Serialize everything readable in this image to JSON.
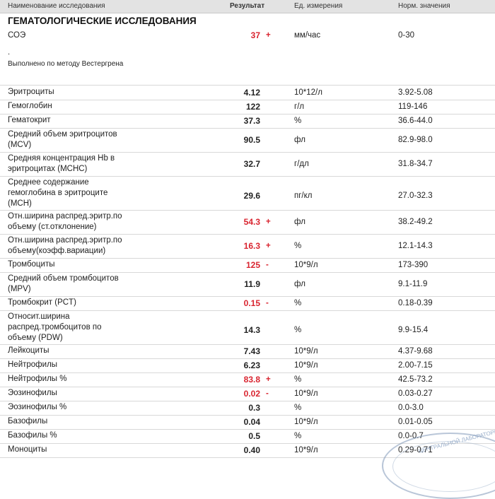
{
  "header": {
    "name": "Наименование исследования",
    "result": "Результат",
    "unit": "Ед. измерения",
    "norm": "Норм. значения"
  },
  "section_title": "ГЕМАТОЛОГИЧЕСКИЕ ИССЛЕДОВАНИЯ",
  "esr": {
    "name": "СОЭ",
    "value": "37",
    "flag": "+",
    "unit": "мм/час",
    "norm": "0-30",
    "dot": ".",
    "method": "Выполнено по методу Вестергрена"
  },
  "rows": [
    {
      "name": [
        "Эритроциты"
      ],
      "value": "4.12",
      "flag": "",
      "unit": "10*12/л",
      "norm": "3.92-5.08"
    },
    {
      "name": [
        "Гемоглобин"
      ],
      "value": "122",
      "flag": "",
      "unit": "г/л",
      "norm": "119-146"
    },
    {
      "name": [
        "Гематокрит"
      ],
      "value": "37.3",
      "flag": "",
      "unit": "%",
      "norm": "36.6-44.0"
    },
    {
      "name": [
        "Средний объем эритроцитов",
        "(MCV)"
      ],
      "value": "90.5",
      "flag": "",
      "unit": "фл",
      "norm": "82.9-98.0"
    },
    {
      "name": [
        "Средняя концентрация Hb в",
        "эритроцитах (MCHC)"
      ],
      "value": "32.7",
      "flag": "",
      "unit": "г/дл",
      "norm": "31.8-34.7"
    },
    {
      "name": [
        "Среднее содержание",
        "гемоглобина в эритроците",
        "(MCH)"
      ],
      "value": "29.6",
      "flag": "",
      "unit": "пг/кл",
      "norm": "27.0-32.3"
    },
    {
      "name": [
        "Отн.ширина распред.эритр.по",
        "объему (ст.отклонение)"
      ],
      "value": "54.3",
      "flag": "+",
      "unit": "фл",
      "norm": "38.2-49.2"
    },
    {
      "name": [
        "Отн.ширина распред.эритр.по",
        "объему(коэфф.вариации)"
      ],
      "value": "16.3",
      "flag": "+",
      "unit": "%",
      "norm": "12.1-14.3"
    },
    {
      "name": [
        "Тромбоциты"
      ],
      "value": "125",
      "flag": "-",
      "unit": "10*9/л",
      "norm": "173-390"
    },
    {
      "name": [
        "Средний объем тромбоцитов",
        "(MPV)"
      ],
      "value": "11.9",
      "flag": "",
      "unit": "фл",
      "norm": "9.1-11.9"
    },
    {
      "name": [
        "Тромбокрит (PCT)"
      ],
      "value": "0.15",
      "flag": "-",
      "unit": "%",
      "norm": "0.18-0.39"
    },
    {
      "name": [
        "Относит.ширина",
        "распред.тромбоцитов по",
        "объему (PDW)"
      ],
      "value": "14.3",
      "flag": "",
      "unit": "%",
      "norm": "9.9-15.4"
    },
    {
      "name": [
        "Лейкоциты"
      ],
      "value": "7.43",
      "flag": "",
      "unit": "10*9/л",
      "norm": "4.37-9.68"
    },
    {
      "name": [
        "Нейтрофилы"
      ],
      "value": "6.23",
      "flag": "",
      "unit": "10*9/л",
      "norm": "2.00-7.15"
    },
    {
      "name": [
        "Нейтрофилы %"
      ],
      "value": "83.8",
      "flag": "+",
      "unit": "%",
      "norm": "42.5-73.2"
    },
    {
      "name": [
        "Эозинофилы"
      ],
      "value": "0.02",
      "flag": "-",
      "unit": "10*9/л",
      "norm": "0.03-0.27"
    },
    {
      "name": [
        "Эозинофилы %"
      ],
      "value": "0.3",
      "flag": "",
      "unit": "%",
      "norm": "0.0-3.0"
    },
    {
      "name": [
        "Базофилы"
      ],
      "value": "0.04",
      "flag": "",
      "unit": "10*9/л",
      "norm": "0.01-0.05"
    },
    {
      "name": [
        "Базофилы %"
      ],
      "value": "0.5",
      "flag": "",
      "unit": "%",
      "norm": "0.0-0.7"
    },
    {
      "name": [
        "Моноциты"
      ],
      "value": "0.40",
      "flag": "",
      "unit": "10*9/л",
      "norm": "0.29-0.71"
    }
  ],
  "stamp_text": "ЦЕНТРАЛЬНОЙ ЛАБОРАТОРИИ"
}
